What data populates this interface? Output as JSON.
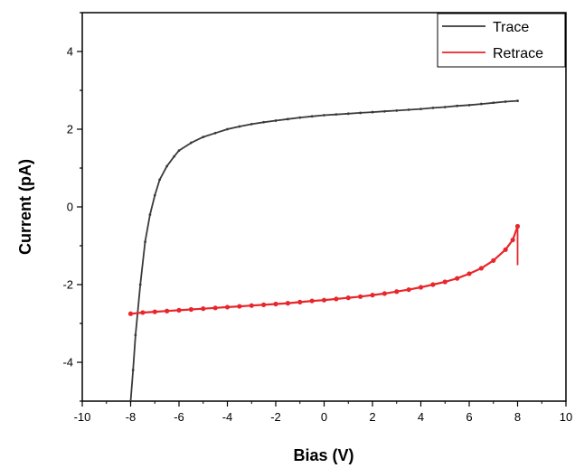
{
  "chart_data": {
    "type": "line",
    "xlabel": "Bias (V)",
    "ylabel": "Current (pA)",
    "xlim": [
      -10,
      10
    ],
    "ylim": [
      -5,
      5
    ],
    "xticks": [
      -10,
      -8,
      -6,
      -4,
      -2,
      0,
      2,
      4,
      6,
      8,
      10
    ],
    "yticks": [
      -4,
      -2,
      0,
      2,
      4
    ],
    "grid": false,
    "legend": "top-right",
    "series": [
      {
        "name": "Trace",
        "color": "#3a3a3a",
        "x": [
          -8.0,
          -7.9,
          -7.8,
          -7.6,
          -7.4,
          -7.2,
          -7.0,
          -6.8,
          -6.5,
          -6.2,
          -6.0,
          -5.5,
          -5.0,
          -4.5,
          -4.0,
          -3.5,
          -3.0,
          -2.5,
          -2.0,
          -1.5,
          -1.0,
          -0.5,
          0.0,
          0.5,
          1.0,
          1.5,
          2.0,
          2.5,
          3.0,
          3.5,
          4.0,
          4.5,
          5.0,
          5.5,
          6.0,
          6.5,
          7.0,
          7.5,
          8.0
        ],
        "y": [
          -5.0,
          -4.2,
          -3.3,
          -2.0,
          -0.9,
          -0.2,
          0.3,
          0.7,
          1.05,
          1.3,
          1.45,
          1.65,
          1.8,
          1.9,
          2.0,
          2.07,
          2.13,
          2.18,
          2.22,
          2.26,
          2.3,
          2.33,
          2.36,
          2.38,
          2.4,
          2.42,
          2.44,
          2.46,
          2.48,
          2.5,
          2.52,
          2.55,
          2.57,
          2.6,
          2.62,
          2.65,
          2.68,
          2.71,
          2.73
        ]
      },
      {
        "name": "Retrace",
        "color": "#e8262b",
        "x": [
          -8.0,
          -7.5,
          -7.0,
          -6.5,
          -6.0,
          -5.5,
          -5.0,
          -4.5,
          -4.0,
          -3.5,
          -3.0,
          -2.5,
          -2.0,
          -1.5,
          -1.0,
          -0.5,
          0.0,
          0.5,
          1.0,
          1.5,
          2.0,
          2.5,
          3.0,
          3.5,
          4.0,
          4.5,
          5.0,
          5.5,
          6.0,
          6.5,
          7.0,
          7.5,
          7.8,
          8.0
        ],
        "y": [
          -2.75,
          -2.72,
          -2.7,
          -2.68,
          -2.66,
          -2.64,
          -2.62,
          -2.6,
          -2.58,
          -2.56,
          -2.54,
          -2.52,
          -2.5,
          -2.48,
          -2.45,
          -2.42,
          -2.4,
          -2.37,
          -2.34,
          -2.31,
          -2.27,
          -2.23,
          -2.18,
          -2.13,
          -2.07,
          -2.0,
          -1.93,
          -1.84,
          -1.72,
          -1.58,
          -1.38,
          -1.1,
          -0.85,
          -0.5
        ]
      }
    ]
  }
}
